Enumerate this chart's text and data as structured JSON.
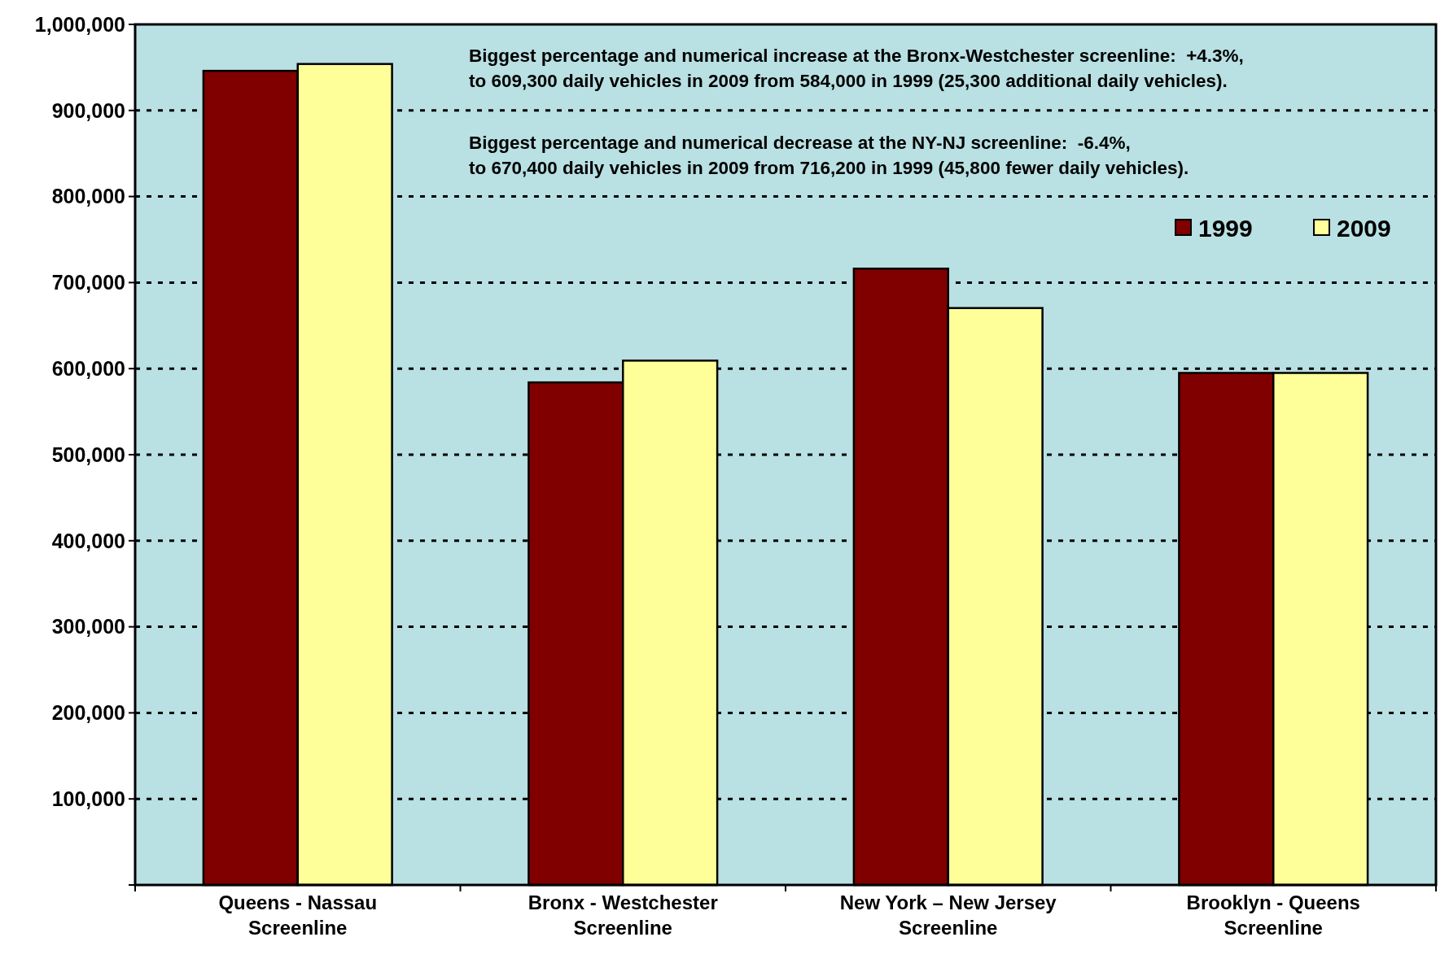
{
  "chart_data": {
    "type": "bar",
    "categories": [
      "Queens - Nassau\nScreenline",
      "Bronx - Westchester\nScreenline",
      "New York – New Jersey\nScreenline",
      "Brooklyn - Queens\nScreenline"
    ],
    "series": [
      {
        "name": "1999",
        "color": "#800000",
        "values": [
          946000,
          584000,
          716200,
          595000
        ]
      },
      {
        "name": "2009",
        "color": "#ffff99",
        "values": [
          954000,
          609300,
          670400,
          595000
        ]
      }
    ],
    "ylim": [
      0,
      1000000
    ],
    "yticks": [
      {
        "value": 0,
        "label": null
      },
      {
        "value": 100000,
        "label": "100,000"
      },
      {
        "value": 200000,
        "label": "200,000"
      },
      {
        "value": 300000,
        "label": "300,000"
      },
      {
        "value": 400000,
        "label": "400,000"
      },
      {
        "value": 500000,
        "label": "500,000"
      },
      {
        "value": 600000,
        "label": "600,000"
      },
      {
        "value": 700000,
        "label": "700,000"
      },
      {
        "value": 800000,
        "label": "800,000"
      },
      {
        "value": 900000,
        "label": "900,000"
      },
      {
        "value": 1000000,
        "label": "1,000,000"
      }
    ],
    "grid": "y",
    "legend": "top right",
    "annotations": [
      "Biggest percentage and numerical increase at the Bronx-Westchester screenline:  +4.3%,\nto 609,300 daily vehicles in 2009 from 584,000 in 1999 (25,300 additional daily vehicles).",
      "Biggest percentage and numerical decrease at the NY-NJ screenline:  -6.4%,\nto 670,400 daily vehicles in 2009 from 716,200 in 1999 (45,800 fewer daily vehicles)."
    ]
  }
}
